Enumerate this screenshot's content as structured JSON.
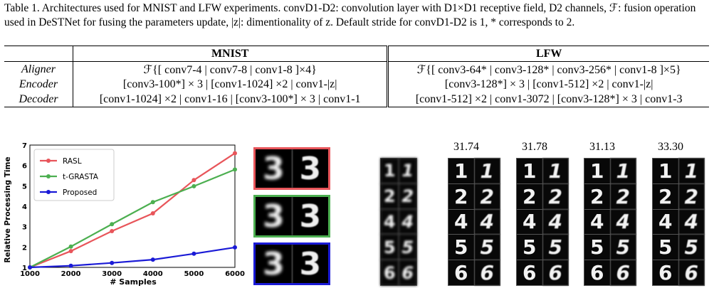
{
  "caption": {
    "text": "Table 1. Architectures used for MNIST and LFW experiments. convD1-D2: convolution layer with D1×D1 receptive field, D2 channels, ℱ: fusion operation used in DeSTNet for fusing the parameters update, |z|: dimentionality of z. Default stride for convD1-D2 is 1, * corresponds to 2."
  },
  "table": {
    "headers": [
      "",
      "MNIST",
      "LFW"
    ],
    "rows": [
      {
        "label": "Aligner",
        "mnist": "ℱ{[ conv7-4 | conv7-8 | conv1-8 ]×4}",
        "lfw": "ℱ{[ conv3-64* | conv3-128* | conv3-256* | conv1-8 ]×5}"
      },
      {
        "label": "Encoder",
        "mnist": "[conv3-100*] × 3 | [conv1-1024] ×2 | conv1-|z|",
        "lfw": "[conv3-128*] × 3 | [conv1-512] ×2 | conv1-|z|"
      },
      {
        "label": "Decoder",
        "mnist": "[conv1-1024] ×2 | conv1-16 | [conv3-100*] × 3 | conv1-1",
        "lfw": "[conv1-512] ×2 | conv1-3072 | [conv3-128*] × 3 | conv1-3"
      }
    ]
  },
  "chart_data": {
    "type": "line",
    "title": "",
    "xlabel": "# Samples",
    "ylabel": "Relative Processing Time",
    "x": [
      1000,
      2000,
      3000,
      4000,
      5000,
      6000
    ],
    "xlim": [
      1000,
      6000
    ],
    "ylim": [
      1,
      7
    ],
    "xticks": [
      "1000",
      "2000",
      "3000",
      "4000",
      "5000",
      "6000"
    ],
    "yticks": [
      "1",
      "2",
      "3",
      "4",
      "5",
      "6",
      "7"
    ],
    "grid": true,
    "legend_position": "top-left",
    "series": [
      {
        "name": "RASL",
        "color": "#e8555a",
        "values": [
          1.0,
          1.8,
          2.78,
          3.65,
          5.28,
          6.6
        ]
      },
      {
        "name": "t-GRASTA",
        "color": "#4caf50",
        "values": [
          1.0,
          2.02,
          3.12,
          4.2,
          4.98,
          5.8
        ]
      },
      {
        "name": "Proposed",
        "color": "#1a1ad6",
        "values": [
          1.0,
          1.08,
          1.22,
          1.38,
          1.67,
          1.98
        ]
      }
    ]
  },
  "mean_digits": {
    "colors": [
      "#e8555a",
      "#4caf50",
      "#1a1ad6"
    ],
    "digit": "3"
  },
  "alignment_results": {
    "scores": [
      "31.74",
      "31.78",
      "31.13",
      "33.30"
    ],
    "digits": [
      "1",
      "2",
      "4",
      "5",
      "6"
    ]
  }
}
